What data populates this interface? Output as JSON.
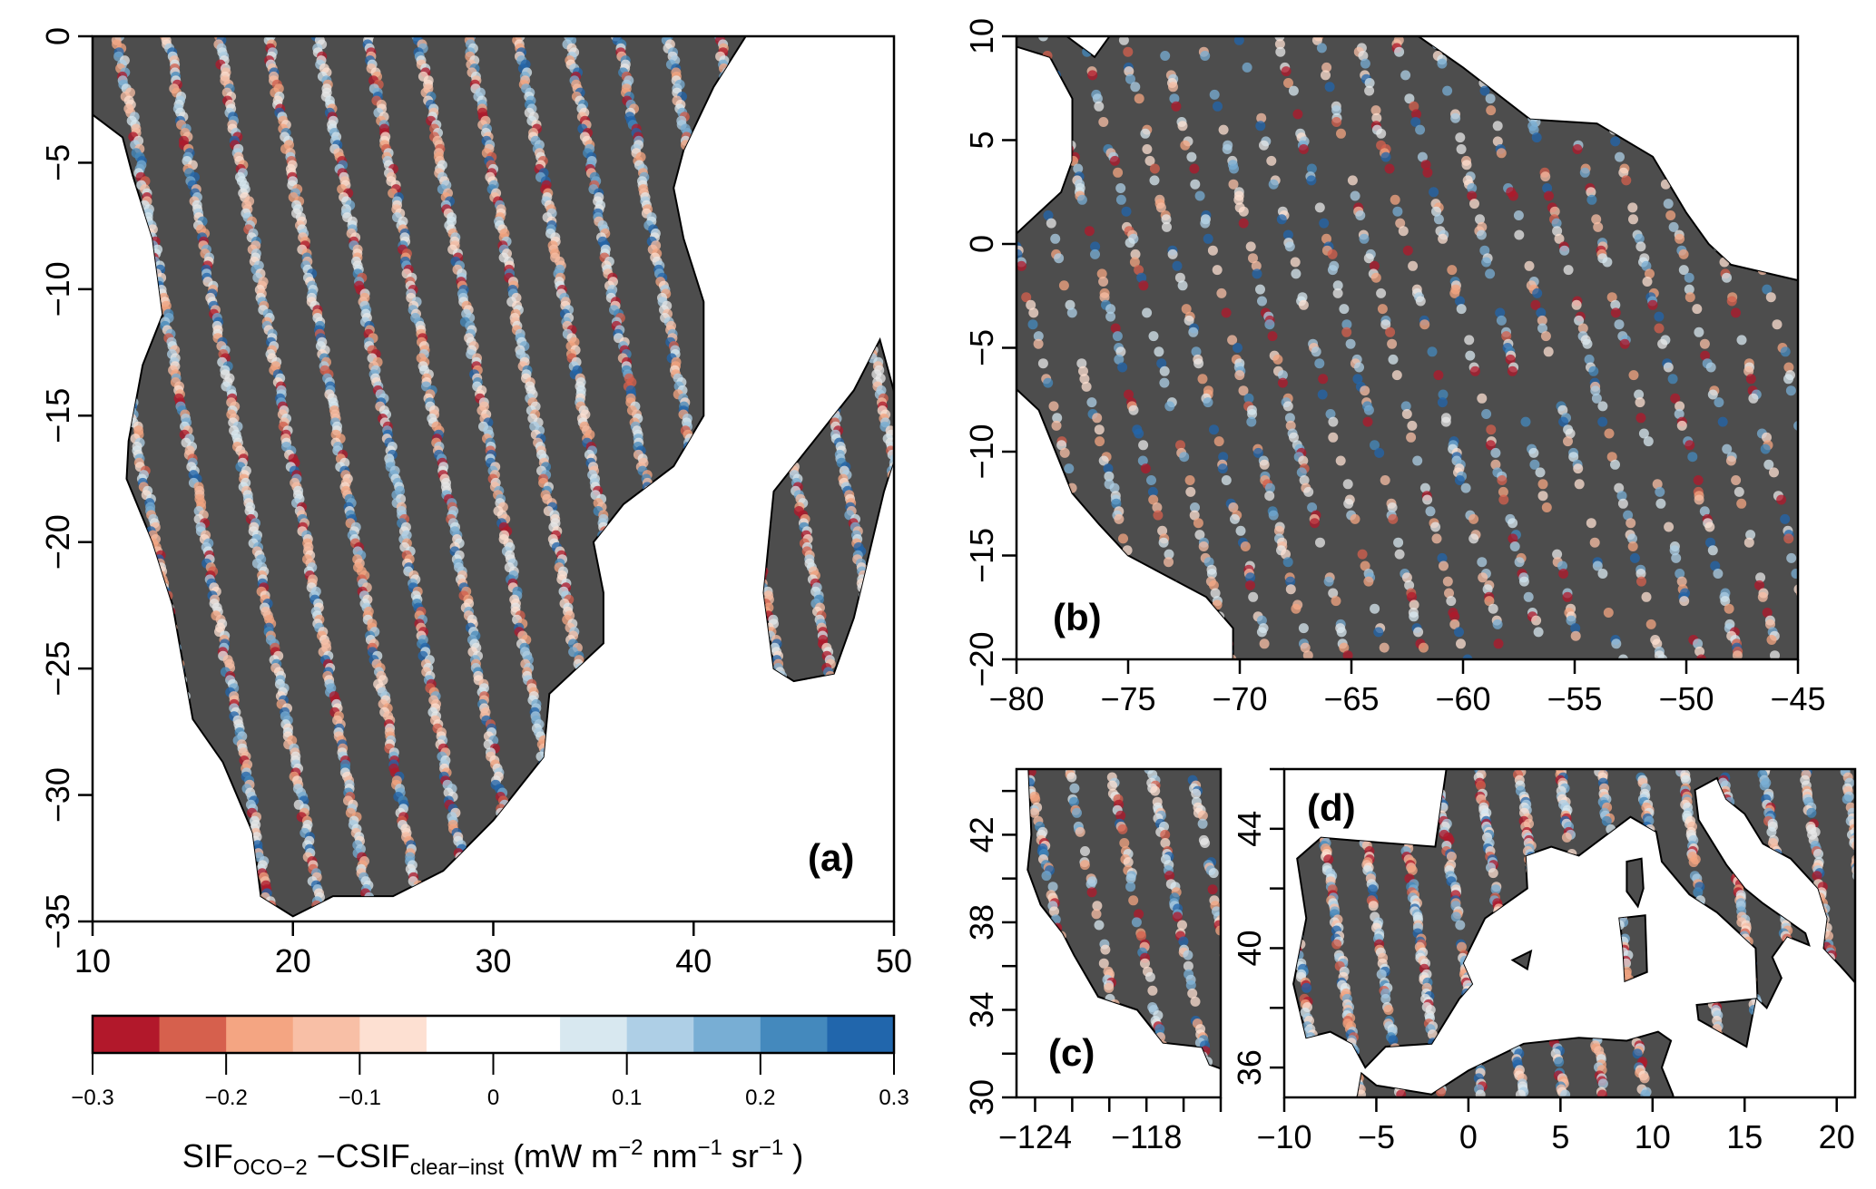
{
  "figure": {
    "panels": [
      {
        "id": "a",
        "label": "(a)",
        "xlim": [
          10,
          50
        ],
        "ylim": [
          -35,
          0
        ],
        "xticks": [
          10,
          20,
          30,
          40,
          50
        ],
        "xtick_labels": [
          "10",
          "20",
          "30",
          "40",
          "50"
        ],
        "yticks": [
          0,
          -5,
          -10,
          -15,
          -20,
          -25,
          -30,
          -35
        ],
        "ytick_labels": [
          "0",
          "−5",
          "−10",
          "−15",
          "−20",
          "−25",
          "−30",
          "−35"
        ]
      },
      {
        "id": "b",
        "label": "(b)",
        "xlim": [
          -80,
          -45
        ],
        "ylim": [
          -20,
          10
        ],
        "xticks": [
          -80,
          -75,
          -70,
          -65,
          -60,
          -55,
          -50,
          -45
        ],
        "xtick_labels": [
          "−80",
          "−75",
          "−70",
          "−65",
          "−60",
          "−55",
          "−50",
          "−45"
        ],
        "yticks": [
          10,
          5,
          0,
          -5,
          -10,
          -15,
          -20
        ],
        "ytick_labels": [
          "10",
          "5",
          "0",
          "−5",
          "−10",
          "−15",
          "−20"
        ]
      },
      {
        "id": "c",
        "label": "(c)",
        "xlim": [
          -125,
          -114
        ],
        "ylim": [
          30,
          45
        ],
        "xticks": [
          -124,
          -122,
          -120,
          -118,
          -116,
          -114
        ],
        "xtick_labels": [
          "−124",
          "",
          "",
          "−118",
          "",
          ""
        ],
        "yticks": [
          30,
          32,
          34,
          36,
          38,
          40,
          42,
          44
        ],
        "ytick_labels": [
          "30",
          "",
          "34",
          "",
          "38",
          "",
          "42",
          ""
        ]
      },
      {
        "id": "d",
        "label": "(d)",
        "xlim": [
          -10,
          21
        ],
        "ylim": [
          35,
          46
        ],
        "xticks": [
          -10,
          -5,
          0,
          5,
          10,
          15,
          20
        ],
        "xtick_labels": [
          "−10",
          "−5",
          "0",
          "5",
          "10",
          "15",
          "20"
        ],
        "yticks": [
          36,
          38,
          40,
          42,
          44,
          46
        ],
        "ytick_labels": [
          "36",
          "",
          "40",
          "",
          "44",
          ""
        ]
      }
    ],
    "colorbar": {
      "breaks": [
        -0.3,
        -0.25,
        -0.2,
        -0.15,
        -0.1,
        -0.05,
        0.05,
        0.1,
        0.15,
        0.2,
        0.25,
        0.3
      ],
      "colors": [
        "#b2182b",
        "#d6604d",
        "#f4a582",
        "#f8bfa6",
        "#fde0d2",
        "#ffffff",
        "#d8e8f0",
        "#aecfe6",
        "#78aed4",
        "#4489bd",
        "#2166ac"
      ],
      "ticks": [
        -0.3,
        -0.2,
        -0.1,
        0,
        0.1,
        0.2,
        0.3
      ],
      "tick_labels": [
        "−0.3",
        "−0.2",
        "−0.1",
        "0",
        "0.1",
        "0.2",
        "0.3"
      ],
      "title": {
        "main1": "SIF",
        "sub1": "OCO−2",
        "main2": " −CSIF",
        "sub2": "clear−inst",
        "units_pre": " (mW m",
        "sup1": "−2",
        "units_mid1": " nm",
        "sup2": "−1",
        "units_mid2": " sr",
        "sup3": "−1",
        "units_post": " )"
      }
    },
    "colors": {
      "land": "#4d4d4d",
      "sea": "#ffffff",
      "border": "#000000"
    }
  }
}
